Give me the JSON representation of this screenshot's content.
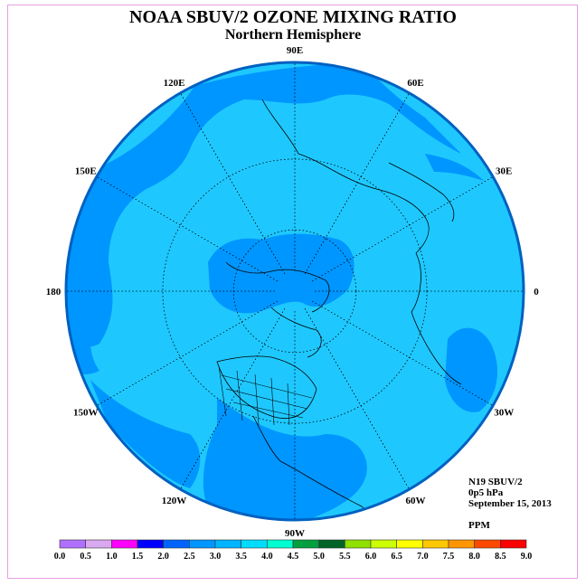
{
  "title": "NOAA SBUV/2 OZONE MIXING RATIO",
  "subtitle": "Northern Hemisphere",
  "longitude_labels": [
    {
      "text": "90E",
      "lon": 90
    },
    {
      "text": "60E",
      "lon": 60
    },
    {
      "text": "30E",
      "lon": 30
    },
    {
      "text": "0",
      "lon": 0
    },
    {
      "text": "30W",
      "lon": -30
    },
    {
      "text": "60W",
      "lon": -60
    },
    {
      "text": "90W",
      "lon": -90
    },
    {
      "text": "120W",
      "lon": -120
    },
    {
      "text": "150W",
      "lon": -150
    },
    {
      "text": "180",
      "lon": 180
    },
    {
      "text": "150E",
      "lon": 150
    },
    {
      "text": "120E",
      "lon": 120
    }
  ],
  "latitude_circles": [
    30,
    60
  ],
  "info": {
    "satellite": "N19 SBUV/2",
    "level": "0p5 hPa",
    "date": "September 15, 2013",
    "units": "PPM"
  },
  "colorbar": {
    "ticks": [
      "0.0",
      "0.5",
      "1.0",
      "1.5",
      "2.0",
      "2.5",
      "3.0",
      "3.5",
      "4.0",
      "4.5",
      "5.0",
      "5.5",
      "6.0",
      "6.5",
      "7.0",
      "7.5",
      "8.0",
      "8.5",
      "9.0"
    ],
    "colors": [
      "#b070ff",
      "#d8a8f0",
      "#ff00ff",
      "#0000ff",
      "#0064ff",
      "#0096ff",
      "#00b4ff",
      "#00dcff",
      "#00ffd0",
      "#00a040",
      "#006428",
      "#90e000",
      "#ccff00",
      "#ffff00",
      "#ffc800",
      "#ff9600",
      "#ff4800",
      "#ff0000",
      "#8c5a3c"
    ]
  },
  "colors": {
    "field_mid": "#1ec8ff",
    "field_low": "#0096ff",
    "border": "#0060c0"
  }
}
